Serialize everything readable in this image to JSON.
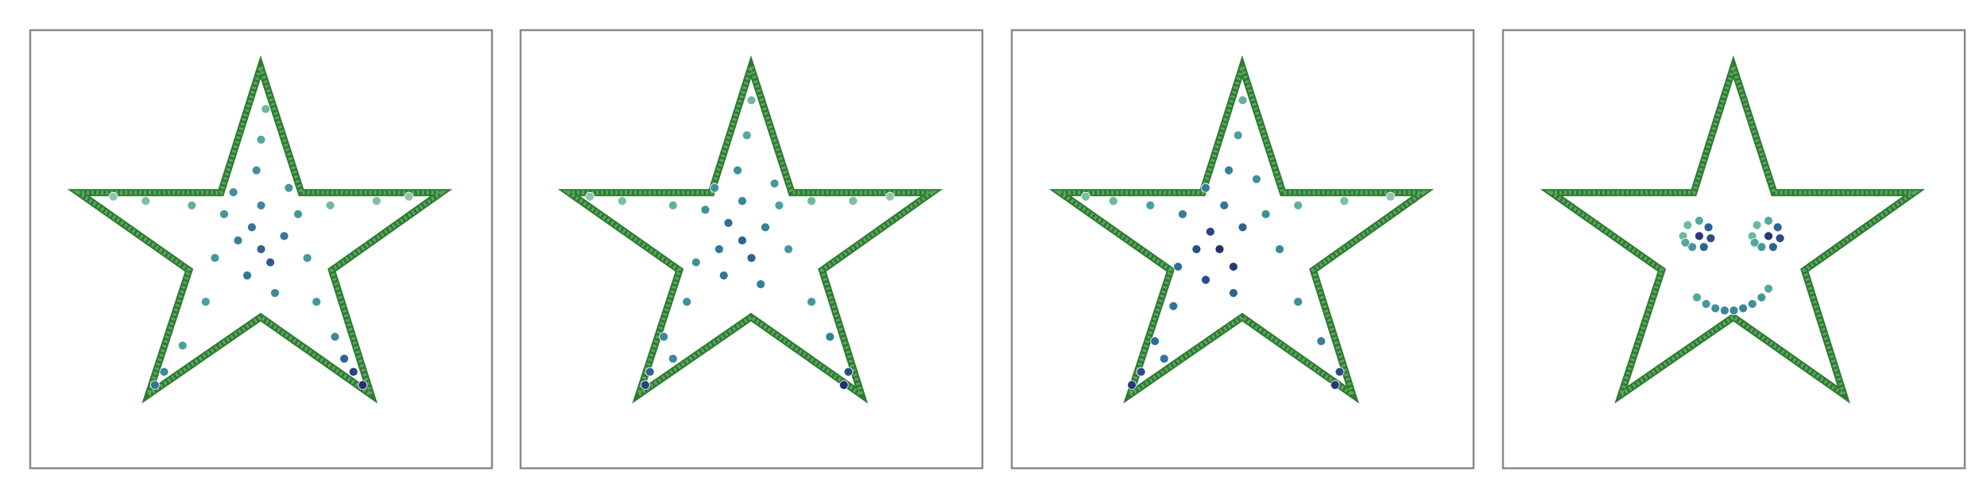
{
  "chart_data": [
    {
      "type": "scatter",
      "xlim": [
        0,
        100
      ],
      "ylim": [
        0,
        100
      ],
      "point_color": "#5aa85a",
      "outline": {
        "x": [
          49.9,
          58.7,
          89.0,
          65.3,
          73.8,
          49.9,
          25.6,
          34.4,
          10.5,
          41.3
        ],
        "y": [
          91.6,
          62.9,
          62.9,
          45.2,
          16.8,
          34.5,
          16.8,
          45.2,
          62.9,
          62.9
        ]
      },
      "colormap": [
        "#a5d8a8",
        "#4aa39c",
        "#2d6a98",
        "#23236b"
      ],
      "x": [
        50,
        48,
        52,
        45,
        55,
        50,
        47,
        53,
        42,
        58,
        35,
        25,
        18,
        65,
        75,
        82,
        50,
        51,
        49,
        40,
        60,
        38,
        33,
        29,
        62,
        66,
        70,
        72,
        68,
        27,
        44,
        56
      ],
      "y": [
        50,
        55,
        47,
        52,
        53,
        60,
        44,
        40,
        58,
        58,
        60,
        61,
        62,
        60,
        61,
        62,
        75,
        82,
        68,
        48,
        48,
        38,
        28,
        22,
        38,
        30,
        22,
        19,
        25,
        19,
        63,
        64
      ],
      "c": [
        0.7,
        0.6,
        0.75,
        0.55,
        0.6,
        0.5,
        0.6,
        0.5,
        0.4,
        0.4,
        0.25,
        0.15,
        0.1,
        0.2,
        0.15,
        0.1,
        0.3,
        0.2,
        0.45,
        0.4,
        0.4,
        0.35,
        0.35,
        0.5,
        0.4,
        0.5,
        0.85,
        0.95,
        0.7,
        0.6,
        0.45,
        0.4
      ]
    },
    {
      "type": "scatter",
      "xlim": [
        0,
        100
      ],
      "ylim": [
        0,
        100
      ],
      "point_color": "#5aa85a",
      "outline": {
        "x": [
          49.9,
          58.7,
          89.0,
          65.3,
          73.8,
          49.9,
          25.6,
          34.4,
          10.5,
          41.3
        ],
        "y": [
          91.6,
          62.9,
          62.9,
          45.2,
          16.8,
          34.5,
          16.8,
          45.2,
          62.9,
          62.9
        ]
      },
      "colormap": [
        "#a5d8a8",
        "#4aa39c",
        "#2d6a98",
        "#23236b"
      ],
      "x": [
        48,
        45,
        50,
        43,
        53,
        48,
        44,
        52,
        40,
        56,
        33,
        22,
        15,
        63,
        72,
        80,
        49,
        50,
        47,
        38,
        58,
        36,
        31,
        28,
        27,
        63,
        67,
        71,
        70,
        33,
        42,
        55
      ],
      "y": [
        52,
        56,
        48,
        50,
        55,
        61,
        44,
        42,
        59,
        60,
        60,
        61,
        62,
        61,
        61,
        62,
        76,
        84,
        68,
        47,
        50,
        38,
        30,
        22,
        19,
        38,
        30,
        22,
        19,
        25,
        64,
        65
      ],
      "c": [
        0.7,
        0.65,
        0.7,
        0.6,
        0.55,
        0.5,
        0.6,
        0.55,
        0.45,
        0.35,
        0.25,
        0.15,
        0.1,
        0.2,
        0.15,
        0.1,
        0.3,
        0.2,
        0.45,
        0.45,
        0.4,
        0.45,
        0.5,
        0.7,
        0.85,
        0.4,
        0.55,
        0.8,
        0.95,
        0.5,
        0.45,
        0.4
      ]
    },
    {
      "type": "scatter",
      "xlim": [
        0,
        100
      ],
      "ylim": [
        0,
        100
      ],
      "point_color": "#5aa85a",
      "outline": {
        "x": [
          49.9,
          58.7,
          89.0,
          65.3,
          73.8,
          49.9,
          25.6,
          34.4,
          10.5,
          41.3
        ],
        "y": [
          91.6,
          62.9,
          62.9,
          45.2,
          16.8,
          34.5,
          16.8,
          45.2,
          62.9,
          62.9
        ]
      },
      "colormap": [
        "#a5d8a8",
        "#4aa39c",
        "#2d6a98",
        "#23236b"
      ],
      "x": [
        45,
        43,
        48,
        40,
        50,
        46,
        42,
        48,
        37,
        55,
        30,
        22,
        16,
        62,
        72,
        82,
        49,
        50,
        47,
        36,
        58,
        35,
        31,
        28,
        26,
        62,
        67,
        71,
        70,
        33,
        42,
        53
      ],
      "y": [
        50,
        54,
        46,
        50,
        55,
        60,
        43,
        40,
        58,
        58,
        60,
        61,
        62,
        60,
        61,
        62,
        76,
        84,
        68,
        46,
        50,
        37,
        29,
        22,
        19,
        38,
        29,
        22,
        19,
        25,
        64,
        66
      ],
      "c": [
        0.95,
        0.85,
        0.9,
        0.8,
        0.7,
        0.6,
        0.8,
        0.7,
        0.55,
        0.45,
        0.35,
        0.2,
        0.15,
        0.25,
        0.15,
        0.1,
        0.35,
        0.25,
        0.55,
        0.65,
        0.5,
        0.6,
        0.65,
        0.8,
        0.9,
        0.45,
        0.55,
        0.8,
        0.9,
        0.6,
        0.55,
        0.45
      ]
    },
    {
      "type": "scatter",
      "xlim": [
        0,
        100
      ],
      "ylim": [
        0,
        100
      ],
      "point_color": "#5aa85a",
      "outline": {
        "x": [
          49.9,
          58.7,
          89.0,
          65.3,
          73.8,
          49.9,
          25.6,
          34.4,
          10.5,
          41.3
        ],
        "y": [
          91.6,
          62.9,
          62.9,
          45.2,
          16.8,
          34.5,
          16.8,
          45.2,
          62.9,
          62.9
        ]
      },
      "colormap": [
        "#a5d8a8",
        "#4aa39c",
        "#2d6a98",
        "#23236b"
      ],
      "x": [
        39,
        40,
        42.5,
        44.5,
        45,
        43.5,
        41,
        39.5,
        42.5,
        54,
        55,
        57.5,
        59.5,
        60,
        58.5,
        56,
        54.5,
        57.5,
        42,
        44,
        46,
        48,
        50,
        52,
        54,
        56,
        57.5
      ],
      "y": [
        53,
        55.5,
        56.5,
        55,
        52.5,
        50.5,
        50.5,
        51.5,
        53,
        53,
        55.5,
        56.5,
        55,
        52.5,
        50.5,
        50.5,
        51.5,
        53,
        39,
        37.5,
        36.5,
        36,
        36,
        36.5,
        37.5,
        39,
        41
      ],
      "c": [
        0.2,
        0.2,
        0.3,
        0.7,
        0.8,
        0.7,
        0.4,
        0.3,
        0.9,
        0.2,
        0.2,
        0.3,
        0.7,
        0.8,
        0.7,
        0.4,
        0.3,
        0.9,
        0.3,
        0.4,
        0.45,
        0.5,
        0.5,
        0.5,
        0.45,
        0.4,
        0.3
      ]
    }
  ]
}
